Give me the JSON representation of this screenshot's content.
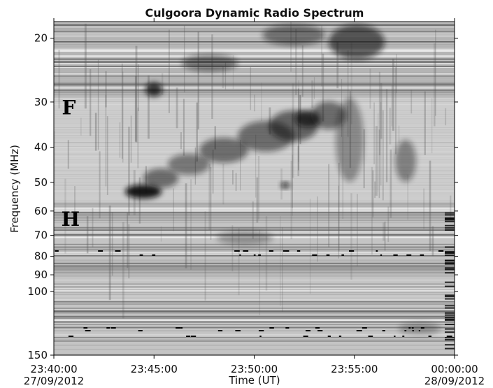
{
  "chart_data": {
    "type": "spectrogram",
    "title": "Culgoora Dynamic Radio Spectrum",
    "xlabel": "Time (UT)",
    "ylabel": "Frequency (MHz)",
    "xlim": [
      "2012-09-27T23:40:00",
      "2012-09-28T00:00:00"
    ],
    "xticks": [
      {
        "value": "2012-09-27T23:40:00",
        "label": "23:40:00",
        "date_label": "27/09/2012"
      },
      {
        "value": "2012-09-27T23:45:00",
        "label": "23:45:00"
      },
      {
        "value": "2012-09-27T23:50:00",
        "label": "23:50:00"
      },
      {
        "value": "2012-09-27T23:55:00",
        "label": "23:55:00"
      },
      {
        "value": "2012-09-28T00:00:00",
        "label": "00:00:00",
        "date_label": "28/09/2012"
      }
    ],
    "ylim": [
      150,
      18
    ],
    "yscale": "log",
    "yticks": [
      20,
      30,
      40,
      50,
      60,
      70,
      80,
      90,
      100,
      150
    ],
    "annotations": [
      {
        "text": "F",
        "x": "2012-09-27T23:40:45",
        "y": 31
      },
      {
        "text": "H",
        "x": "2012-09-27T23:40:50",
        "y": 63
      }
    ]
  }
}
